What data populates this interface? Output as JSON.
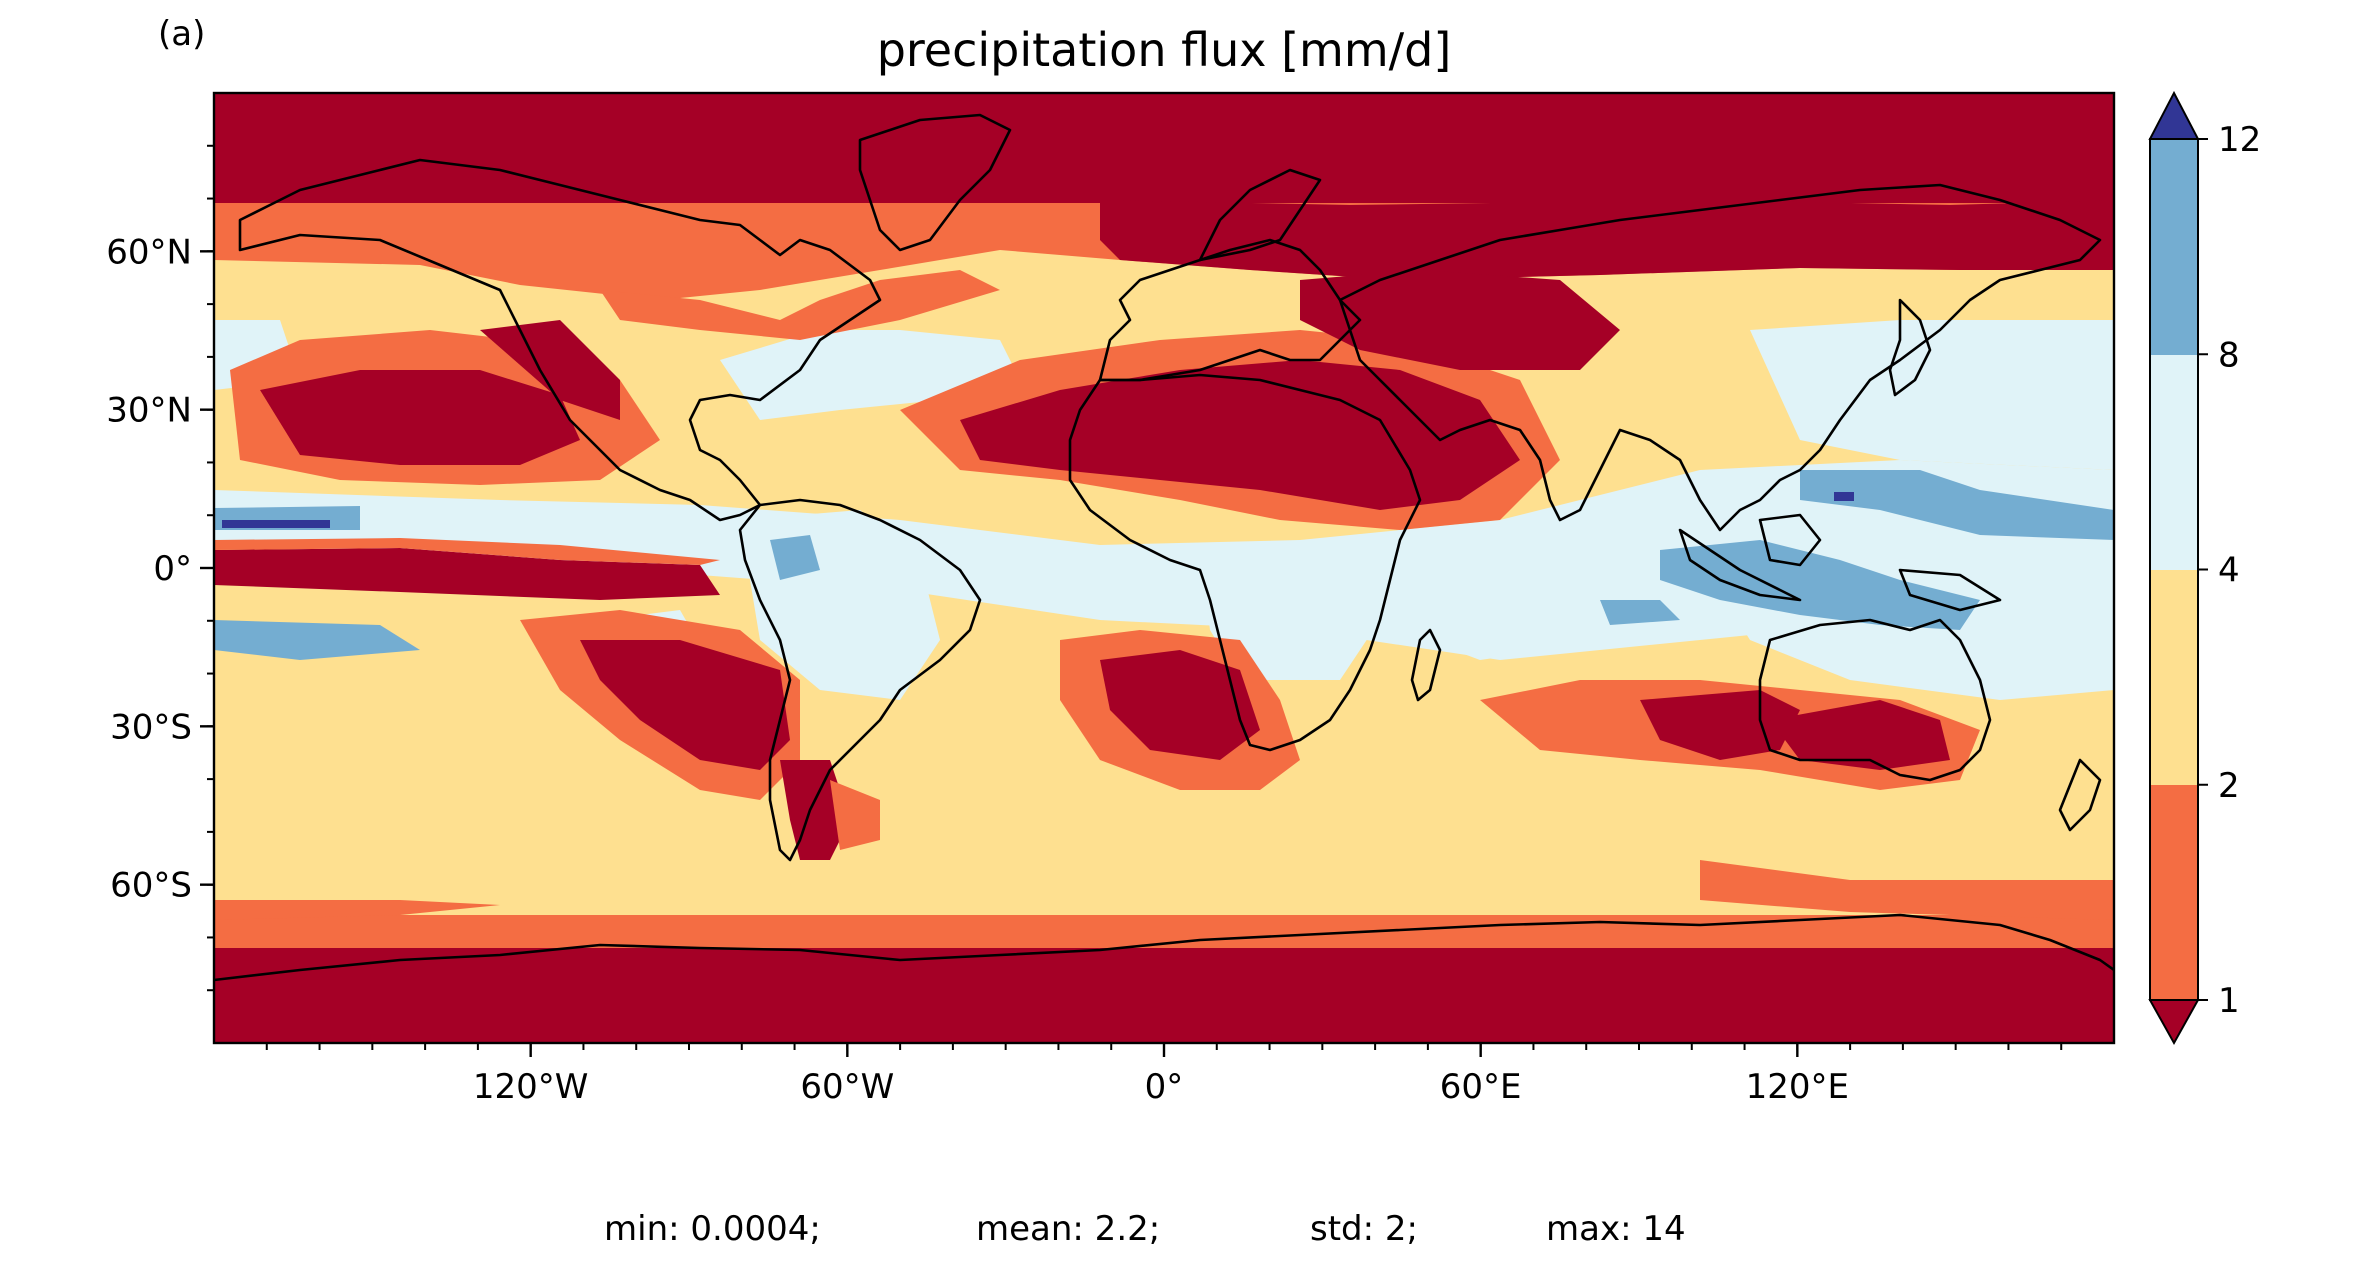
{
  "panel_label": "(a)",
  "title": "precipitation flux [mm/d]",
  "stats": {
    "min": "min: 0.0004;",
    "mean": "mean: 2.2;",
    "std": "std: 2;",
    "max": "max: 14"
  },
  "axes": {
    "lon_range": [
      -180,
      180
    ],
    "lat_range": [
      -90,
      90
    ],
    "lon_ticks": [
      {
        "value": -120,
        "label": "120°W"
      },
      {
        "value": -60,
        "label": "60°W"
      },
      {
        "value": 0,
        "label": "0°"
      },
      {
        "value": 60,
        "label": "60°E"
      },
      {
        "value": 120,
        "label": "120°E"
      }
    ],
    "lat_ticks": [
      {
        "value": 60,
        "label": "60°N"
      },
      {
        "value": 30,
        "label": "30°N"
      },
      {
        "value": 0,
        "label": "0°"
      },
      {
        "value": -30,
        "label": "30°S"
      },
      {
        "value": -60,
        "label": "60°S"
      }
    ]
  },
  "colorbar": {
    "ticks": [
      {
        "value": 1,
        "label": "1"
      },
      {
        "value": 2,
        "label": "2"
      },
      {
        "value": 4,
        "label": "4"
      },
      {
        "value": 8,
        "label": "8"
      },
      {
        "value": 12,
        "label": "12"
      }
    ],
    "bins": [
      {
        "range": "<1",
        "color": "#a50026"
      },
      {
        "range": "1-2",
        "color": "#f46d43"
      },
      {
        "range": "2-4",
        "color": "#fee090"
      },
      {
        "range": "4-8",
        "color": "#e0f3f8"
      },
      {
        "range": "8-12",
        "color": "#74add1"
      },
      {
        "range": ">12",
        "color": "#313695"
      }
    ]
  },
  "colors": {
    "lt1": "#a50026",
    "b1_2": "#f46d43",
    "b2_4": "#fee090",
    "b4_8": "#e0f3f8",
    "b8_12": "#74add1",
    "gt12": "#313695"
  }
}
